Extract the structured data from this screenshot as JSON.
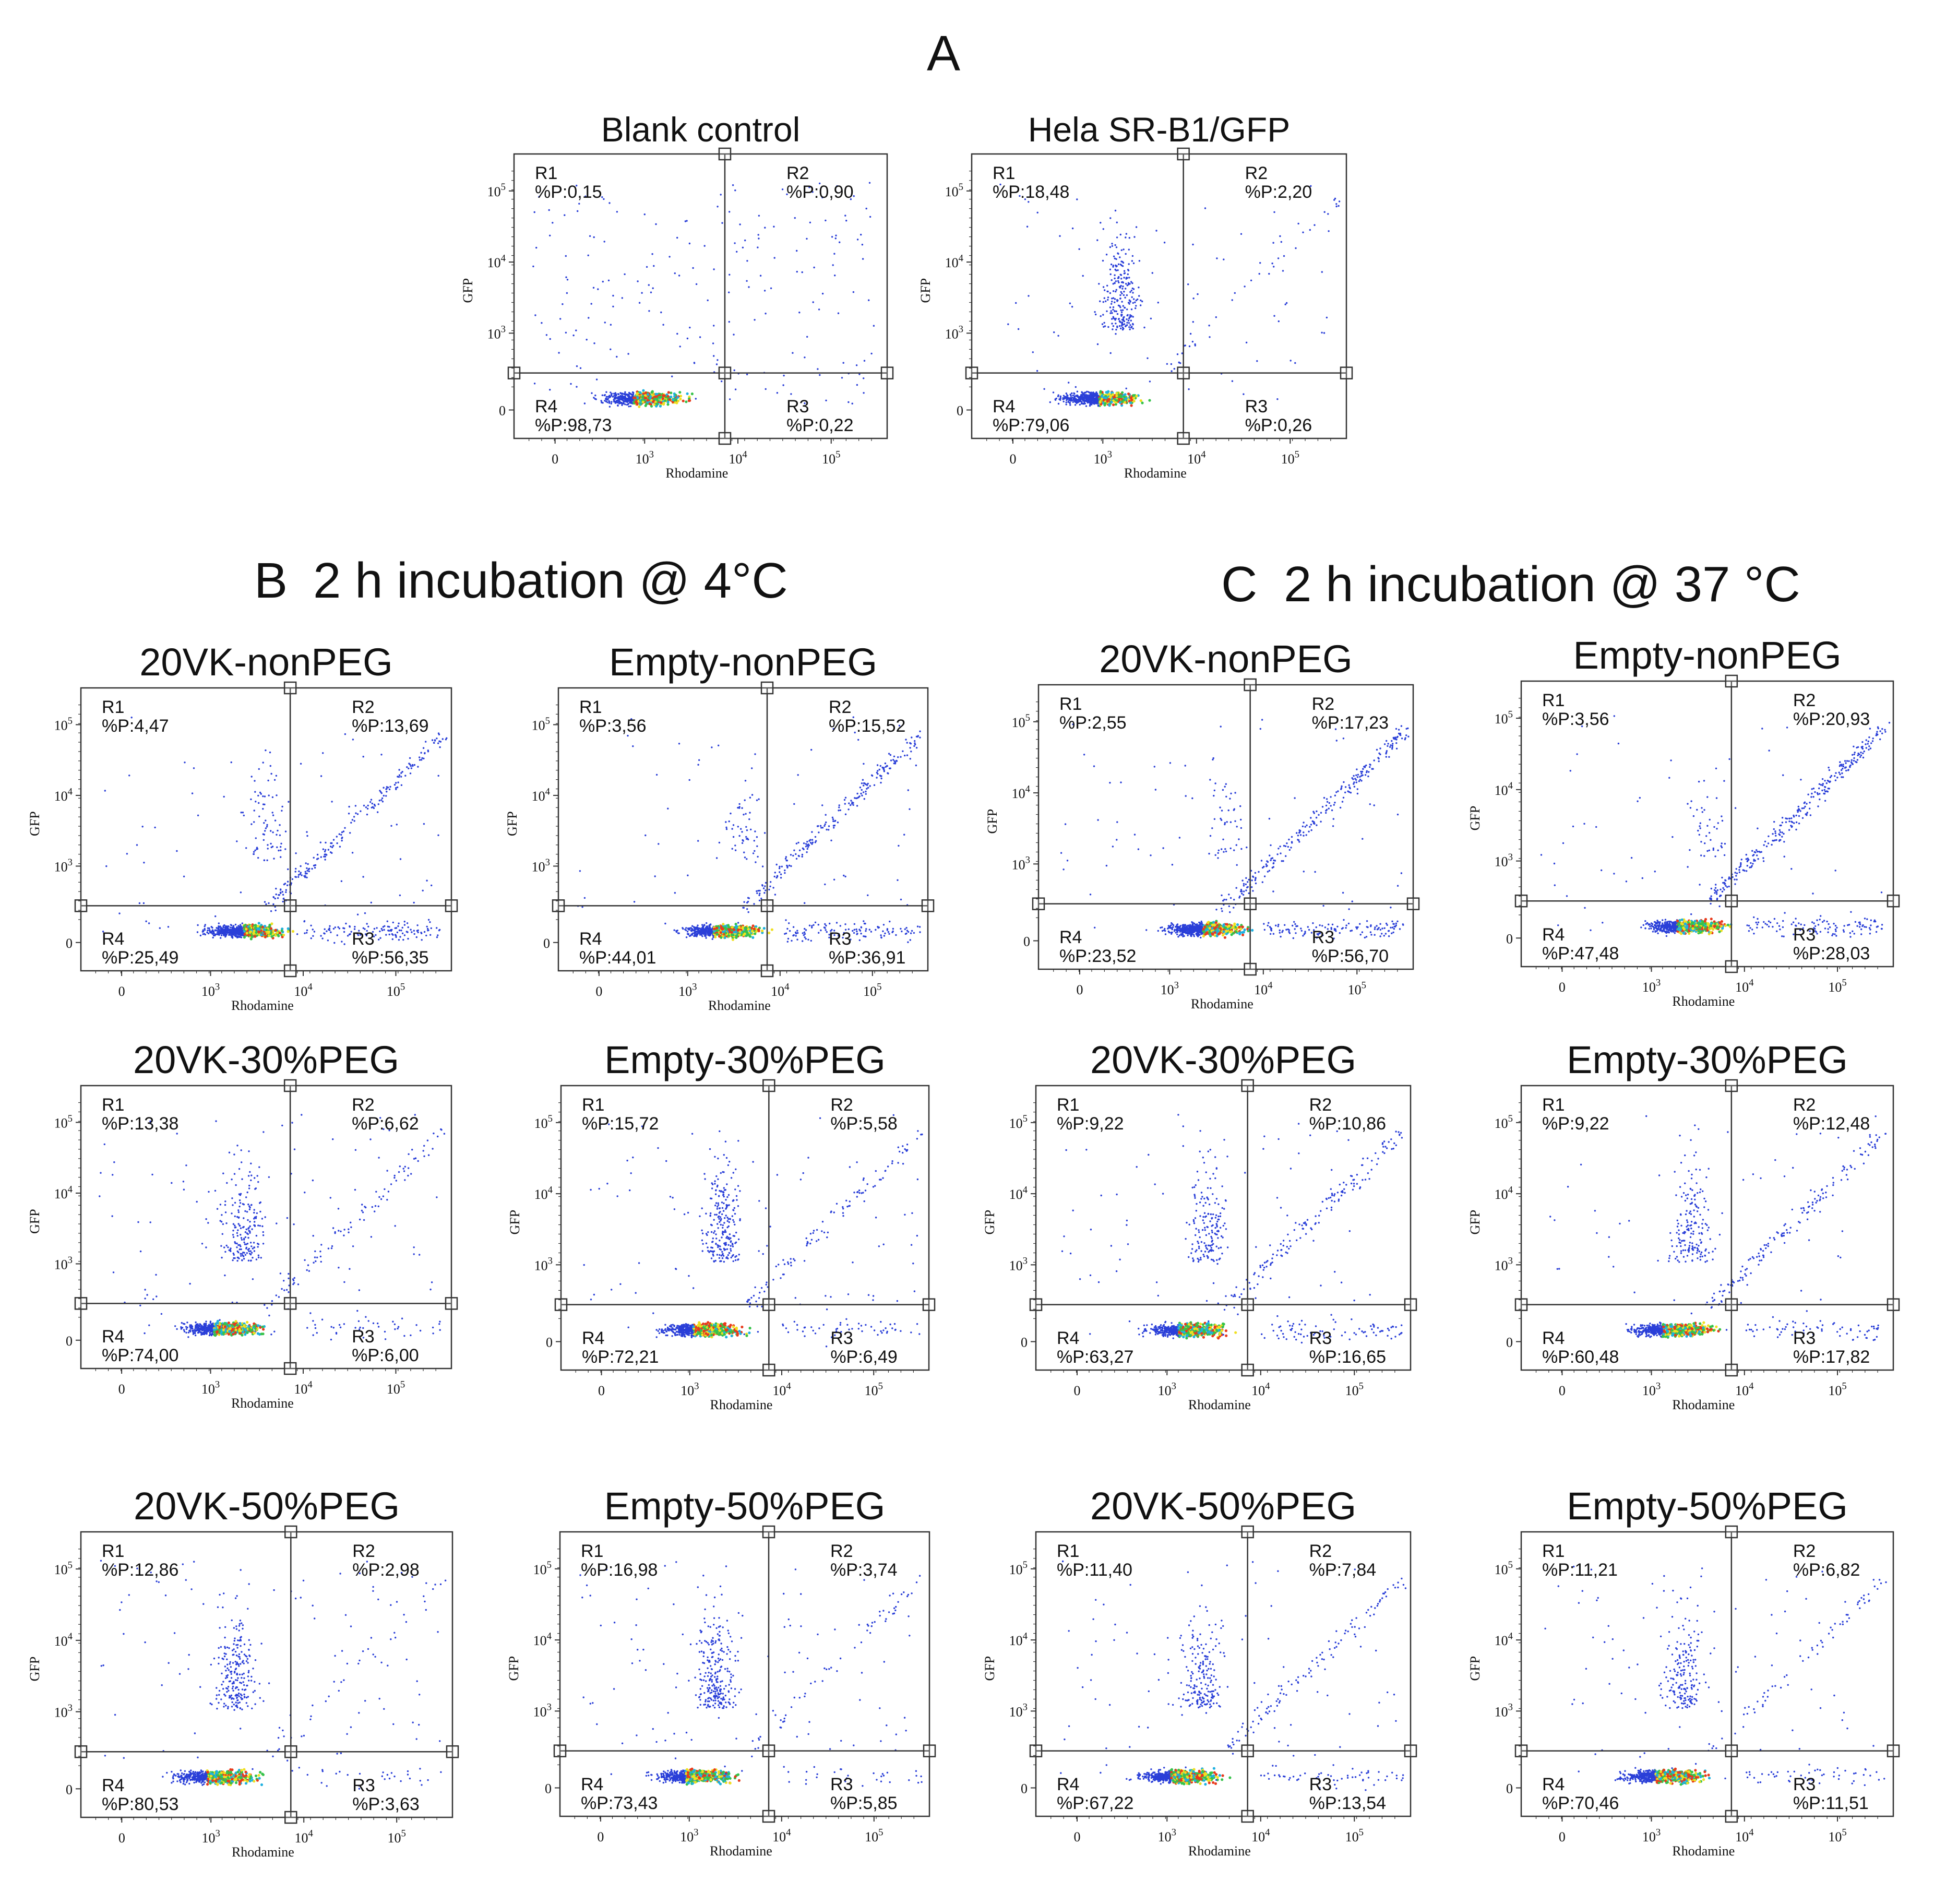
{
  "chart_data": {
    "type": "scatter",
    "panel_labels": {
      "A": "A",
      "B": "B",
      "C": "C"
    },
    "section_titles": {
      "B": "2 h incubation @ 4°C",
      "C": "2 h incubation @ 37 °C"
    },
    "xlabel": "Rhodamine",
    "ylabel": "GFP",
    "x_tick_labels": [
      "0",
      "10 3",
      "10 4",
      "10 5"
    ],
    "y_tick_labels": [
      "0",
      "10 3",
      "10 4",
      "10 5"
    ],
    "quadrant_names": [
      "R1",
      "R2",
      "R3",
      "R4"
    ],
    "stat_prefix": "%P:",
    "plots": [
      {
        "title": "Blank control",
        "R1": "0,15",
        "R2": "0,90",
        "R3": "0,22",
        "R4": "98,73"
      },
      {
        "title": "Hela SR-B1/GFP",
        "R1": "18,48",
        "R2": "2,20",
        "R3": "0,26",
        "R4": "79,06"
      },
      {
        "title": "20VK-nonPEG",
        "R1": "4,47",
        "R2": "13,69",
        "R3": "56,35",
        "R4": "25,49"
      },
      {
        "title": "Empty-nonPEG",
        "R1": "3,56",
        "R2": "15,52",
        "R3": "36,91",
        "R4": "44,01"
      },
      {
        "title": "20VK-nonPEG",
        "R1": "2,55",
        "R2": "17,23",
        "R3": "56,70",
        "R4": "23,52"
      },
      {
        "title": "Empty-nonPEG",
        "R1": "3,56",
        "R2": "20,93",
        "R3": "28,03",
        "R4": "47,48"
      },
      {
        "title": "20VK-30%PEG",
        "R1": "13,38",
        "R2": "6,62",
        "R3": "6,00",
        "R4": "74,00"
      },
      {
        "title": "Empty-30%PEG",
        "R1": "15,72",
        "R2": "5,58",
        "R3": "6,49",
        "R4": "72,21"
      },
      {
        "title": "20VK-30%PEG",
        "R1": "9,22",
        "R2": "10,86",
        "R3": "16,65",
        "R4": "63,27"
      },
      {
        "title": "Empty-30%PEG",
        "R1": "9,22",
        "R2": "12,48",
        "R3": "17,82",
        "R4": "60,48"
      },
      {
        "title": "20VK-50%PEG",
        "R1": "12,86",
        "R2": "2,98",
        "R3": "3,63",
        "R4": "80,53"
      },
      {
        "title": "Empty-50%PEG",
        "R1": "16,98",
        "R2": "3,74",
        "R3": "5,85",
        "R4": "73,43"
      },
      {
        "title": "20VK-50%PEG",
        "R1": "11,40",
        "R2": "7,84",
        "R3": "13,54",
        "R4": "67,22"
      },
      {
        "title": "Empty-50%PEG",
        "R1": "11,21",
        "R2": "6,82",
        "R3": "11,51",
        "R4": "70,46"
      }
    ],
    "colors": {
      "sparse": "#2a3fd8",
      "mid": "#1fb0e0",
      "dense": "#36c24a",
      "hot": "#f0e020",
      "core": "#e83a1c",
      "frame": "#333333"
    }
  }
}
